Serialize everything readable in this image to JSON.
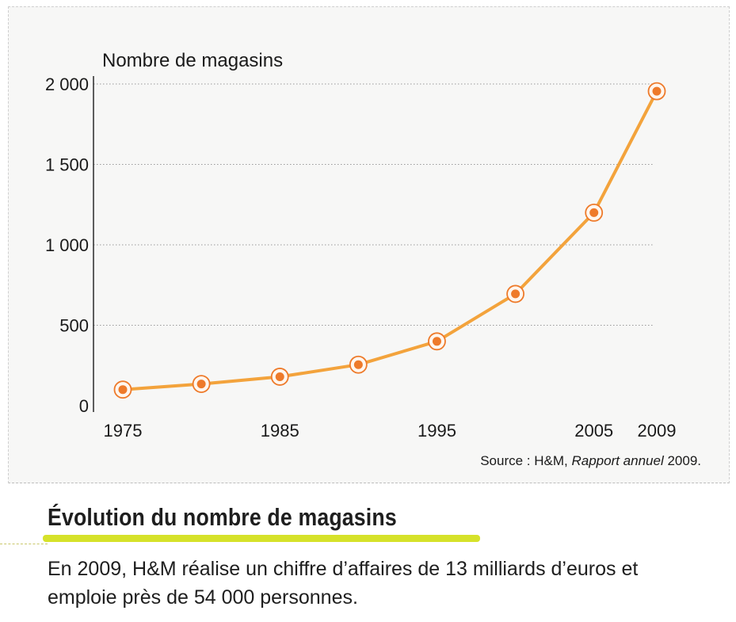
{
  "chart_data": {
    "type": "line",
    "ylabel": "Nombre de magasins",
    "xlabel": "",
    "x": [
      1975,
      1980,
      1985,
      1990,
      1995,
      2000,
      2005,
      2009
    ],
    "values": [
      100,
      135,
      180,
      255,
      400,
      695,
      1200,
      1955
    ],
    "xticks": [
      "1975",
      "1985",
      "1995",
      "2005",
      "2009"
    ],
    "xtick_values": [
      1975,
      1985,
      1995,
      2005,
      2009
    ],
    "yticks": [
      "0",
      "500",
      "1 000",
      "1 500",
      "2 000"
    ],
    "ytick_values": [
      0,
      500,
      1000,
      1500,
      2000
    ],
    "ylim": [
      0,
      2000
    ],
    "grid": true,
    "line_color": "#f3a33c",
    "marker_color": "#ee7a2a",
    "source_prefix": "Source : H&M, ",
    "source_italic": "Rapport annuel",
    "source_suffix": " 2009."
  },
  "caption": {
    "title": "Évolution du nombre de magasins",
    "text": "En 2009, H&M réalise un chiffre d’affaires de 13 milliards d’euros et emploie près de 54 000 personnes.",
    "highlight_color": "#d6e22a"
  }
}
